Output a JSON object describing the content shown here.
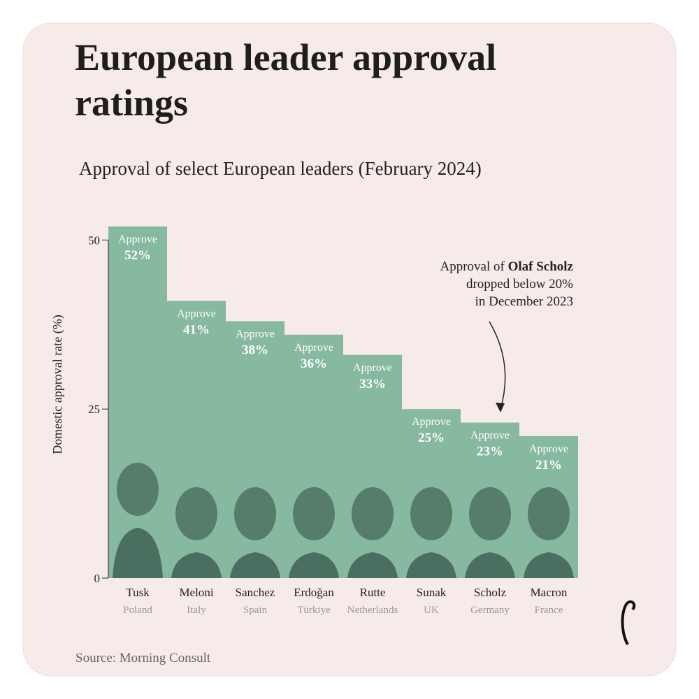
{
  "chart_data": {
    "type": "bar",
    "title": [
      "European leader approval",
      "ratings"
    ],
    "subtitle": "Approval of select European leaders (February 2024)",
    "y_label": "Domestic approval rate (%)",
    "bar_label": "Approve",
    "categories": [
      "Tusk",
      "Meloni",
      "Sanchez",
      "Erdoğan",
      "Rutte",
      "Sunak",
      "Scholz",
      "Macron"
    ],
    "countries": [
      "Poland",
      "Italy",
      "Spain",
      "Türkiye",
      "Netherlands",
      "UK",
      "Germany",
      "France"
    ],
    "values": [
      52,
      41,
      38,
      36,
      33,
      25,
      23,
      21
    ],
    "value_labels": [
      "52%",
      "41%",
      "38%",
      "36%",
      "33%",
      "25%",
      "23%",
      "21%"
    ],
    "color": "#86b9a0",
    "ylim": [
      0,
      52
    ],
    "yticks": [
      0,
      25,
      50
    ],
    "annotation": {
      "prefix": "Approval of ",
      "name": "Olaf Scholz",
      "lines": [
        "dropped below 20%",
        "in December 2023"
      ]
    },
    "source": "Source: Morning Consult"
  }
}
